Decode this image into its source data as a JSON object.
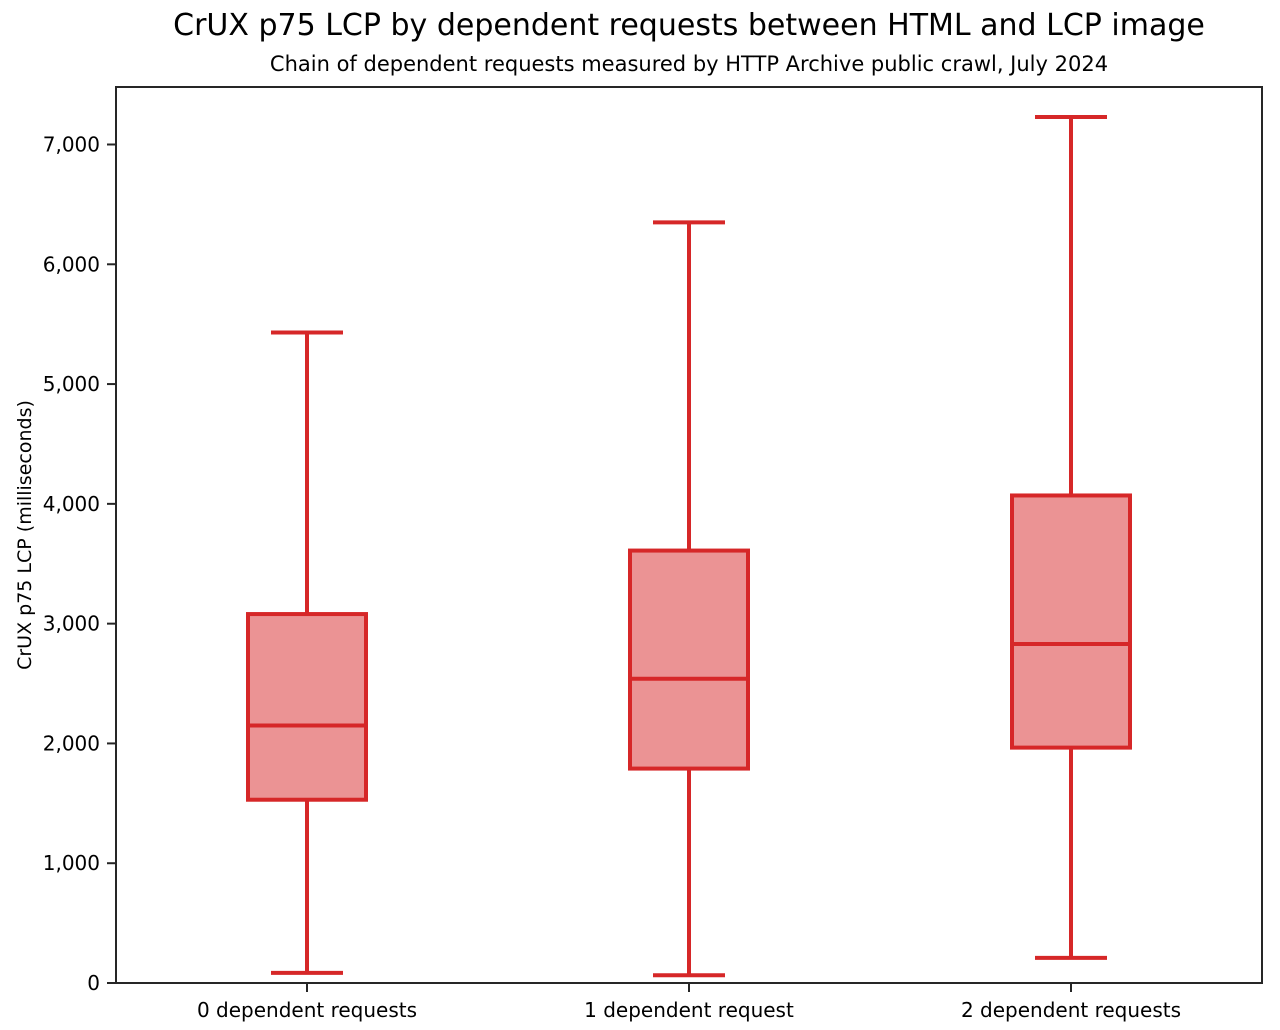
{
  "page": {
    "background": "#ffffff"
  },
  "chart_data": {
    "type": "boxplot",
    "title": "CrUX p75 LCP by dependent requests between HTML and LCP image",
    "subtitle": "Chain of dependent requests measured by HTTP Archive public crawl, July 2024",
    "ylabel": "CrUX p75 LCP (milliseconds)",
    "xlabel": "",
    "unit": "milliseconds",
    "categories": [
      "0 dependent requests",
      "1 dependent request",
      "2 dependent requests"
    ],
    "series": [
      {
        "category": "0 dependent requests",
        "whisker_low": 85,
        "q1": 1530,
        "median": 2150,
        "q3": 3080,
        "whisker_high": 5430
      },
      {
        "category": "1 dependent request",
        "whisker_low": 65,
        "q1": 1790,
        "median": 2540,
        "q3": 3610,
        "whisker_high": 6350
      },
      {
        "category": "2 dependent requests",
        "whisker_low": 210,
        "q1": 1965,
        "median": 2830,
        "q3": 4070,
        "whisker_high": 7230
      }
    ],
    "ylim": [
      0,
      7480
    ],
    "yticks": [
      0,
      1000,
      2000,
      3000,
      4000,
      5000,
      6000,
      7000
    ],
    "ytick_labels": [
      "0",
      "1,000",
      "2,000",
      "3,000",
      "4,000",
      "5,000",
      "6,000",
      "7,000"
    ],
    "grid": false,
    "legend": null,
    "colors": {
      "box_line": "#d62728",
      "box_fill": "#eb9394",
      "axis": "#262626",
      "text": "#000000"
    }
  }
}
